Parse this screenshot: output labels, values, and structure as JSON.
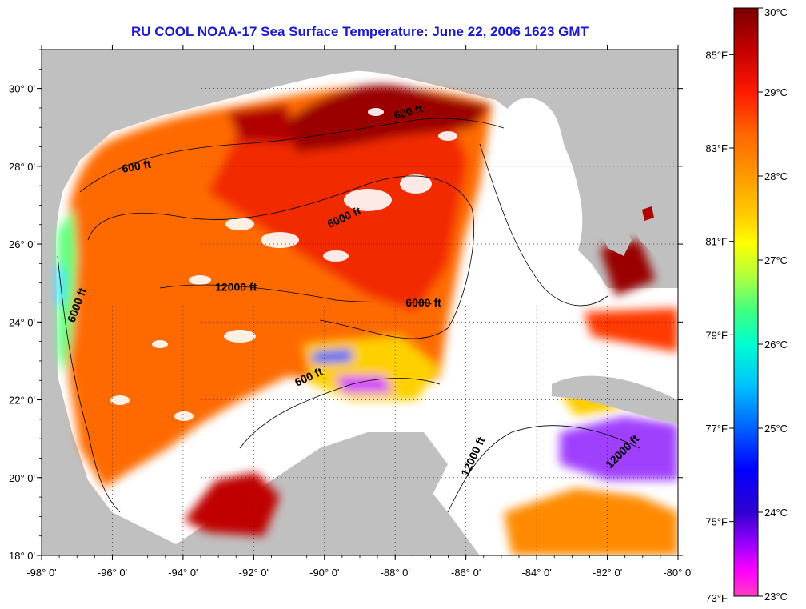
{
  "title": "RU COOL  NOAA-17  Sea Surface Temperature:  June 22, 2006 1623 GMT",
  "x_ticks": [
    {
      "label": "-98° 0'",
      "lon": -98
    },
    {
      "label": "-96° 0'",
      "lon": -96
    },
    {
      "label": "-94° 0'",
      "lon": -94
    },
    {
      "label": "-92° 0'",
      "lon": -92
    },
    {
      "label": "-90° 0'",
      "lon": -90
    },
    {
      "label": "-88° 0'",
      "lon": -88
    },
    {
      "label": "-86° 0'",
      "lon": -86
    },
    {
      "label": "-84° 0'",
      "lon": -84
    },
    {
      "label": "-82° 0'",
      "lon": -82
    },
    {
      "label": "-80° 0'",
      "lon": -80
    }
  ],
  "y_ticks": [
    {
      "label": "18° 0'",
      "lat": 18
    },
    {
      "label": "20° 0'",
      "lat": 20
    },
    {
      "label": "22° 0'",
      "lat": 22
    },
    {
      "label": "24° 0'",
      "lat": 24
    },
    {
      "label": "26° 0'",
      "lat": 26
    },
    {
      "label": "28° 0'",
      "lat": 28
    },
    {
      "label": "30° 0'",
      "lat": 30
    }
  ],
  "map_extent": {
    "lon": [
      -98,
      -80
    ],
    "lat": [
      18,
      31
    ]
  },
  "colorbar": {
    "range_c": [
      23,
      30
    ],
    "celsius_labels": [
      {
        "label": "30°C",
        "value": 30
      },
      {
        "label": "29°C",
        "value": 29
      },
      {
        "label": "28°C",
        "value": 28
      },
      {
        "label": "27°C",
        "value": 27
      },
      {
        "label": "26°C",
        "value": 26
      },
      {
        "label": "25°C",
        "value": 25
      },
      {
        "label": "24°C",
        "value": 24
      },
      {
        "label": "23°C",
        "value": 23
      }
    ],
    "fahrenheit_labels": [
      {
        "label": "85°F",
        "value": 85
      },
      {
        "label": "83°F",
        "value": 83
      },
      {
        "label": "81°F",
        "value": 81
      },
      {
        "label": "79°F",
        "value": 79
      },
      {
        "label": "77°F",
        "value": 77
      },
      {
        "label": "75°F",
        "value": 75
      },
      {
        "label": "73°F",
        "value": 73
      }
    ],
    "stops": [
      {
        "value": 30,
        "color": "#7a0000"
      },
      {
        "value": 29.5,
        "color": "#c40000"
      },
      {
        "value": 29,
        "color": "#ff1a00"
      },
      {
        "value": 28.5,
        "color": "#ff6600"
      },
      {
        "value": 28,
        "color": "#ff9900"
      },
      {
        "value": 27.5,
        "color": "#ffd000"
      },
      {
        "value": 27.2,
        "color": "#ffff00"
      },
      {
        "value": 26.8,
        "color": "#b0ff40"
      },
      {
        "value": 26.4,
        "color": "#40ff80"
      },
      {
        "value": 26,
        "color": "#00ffd0"
      },
      {
        "value": 25.5,
        "color": "#00c0ff"
      },
      {
        "value": 25,
        "color": "#0060ff"
      },
      {
        "value": 24.5,
        "color": "#0000ff"
      },
      {
        "value": 24,
        "color": "#3000d0"
      },
      {
        "value": 23.6,
        "color": "#a000ff"
      },
      {
        "value": 23.3,
        "color": "#ff00ff"
      },
      {
        "value": 23,
        "color": "#ff40c0"
      }
    ]
  },
  "contour_labels": [
    {
      "text": "600 ft",
      "lon": -95.3,
      "lat": 27.9,
      "angle": -10
    },
    {
      "text": "6000 ft",
      "lon": -89.4,
      "lat": 26.6,
      "angle": -25
    },
    {
      "text": "600 ft",
      "lon": -87.6,
      "lat": 29.3,
      "angle": -15
    },
    {
      "text": "12000 ft",
      "lon": -92.5,
      "lat": 24.8,
      "angle": 0
    },
    {
      "text": "6000 ft",
      "lon": -87.2,
      "lat": 24.4,
      "angle": 0
    },
    {
      "text": "6000 ft",
      "lon": -96.9,
      "lat": 24.4,
      "angle": -70
    },
    {
      "text": "600 ft",
      "lon": -90.4,
      "lat": 22.5,
      "angle": -25
    },
    {
      "text": "12000 ft",
      "lon": -85.7,
      "lat": 20.5,
      "angle": -65
    },
    {
      "text": "12000 ft",
      "lon": -81.5,
      "lat": 20.6,
      "angle": -45
    }
  ],
  "colors": {
    "land": "#c0c0c0",
    "cloud": "#ffffff",
    "title": "#1a1acc",
    "frame": "#000000"
  }
}
